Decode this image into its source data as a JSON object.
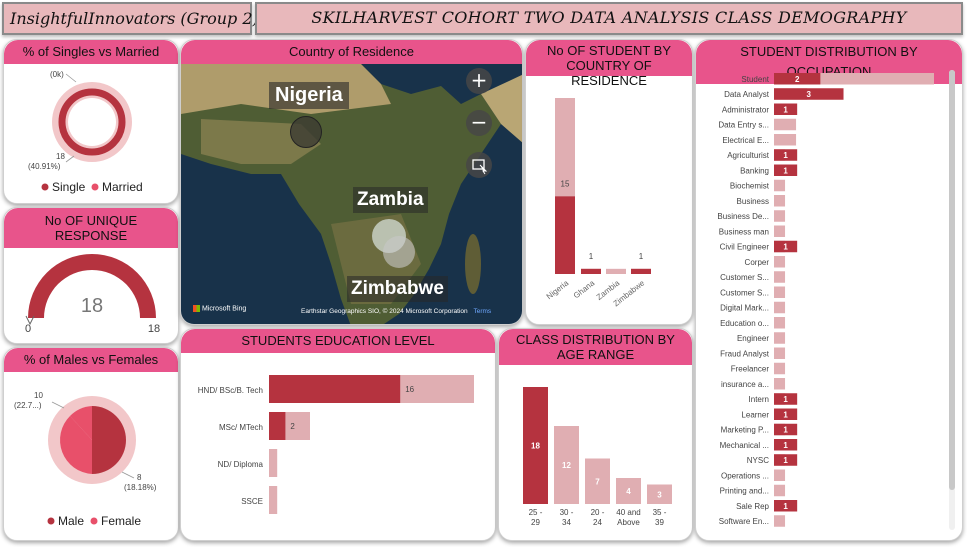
{
  "header": {
    "group_title": "InsightfulInnovators (Group 2)",
    "main_title": "SKILHARVEST COHORT TWO DATA ANALYSIS CLASS DEMOGRAPHY"
  },
  "colors": {
    "accent": "#e8548b",
    "dark_red": "#b5333f",
    "light_pink": "#e0aeb2",
    "banner": "#e8b8bb"
  },
  "marital": {
    "title": "% of Singles vs Married",
    "label_top": "(0k)",
    "label_bottom_value": "18",
    "label_bottom_pct": "(40.91%)",
    "legend": [
      "Single",
      "Married"
    ]
  },
  "unique_response": {
    "title": "No OF UNIQUE RESPONSE",
    "value": "18",
    "min": "0",
    "max": "18",
    "fraction": 1.0
  },
  "gender": {
    "title": "% of Males vs Females",
    "label_top_value": "10",
    "label_top_pct": "(22.7...)",
    "label_bottom_value": "8",
    "label_bottom_pct": "(18.18%)",
    "legend": [
      "Male",
      "Female"
    ]
  },
  "map": {
    "title": "Country of Residence",
    "labels": [
      "Nigeria",
      "Zambia",
      "Zimbabwe"
    ],
    "credit": "Earthstar Geographics SIO, © 2024 Microsoft Corporation",
    "terms": "Terms",
    "logo": "Microsoft Bing",
    "controls": [
      "zoom-in-icon",
      "zoom-out-icon",
      "select-icon"
    ]
  },
  "education": {
    "title": "STUDENTS EDUCATION LEVEL",
    "categories": [
      "HND/ BSc/B. Tech",
      "MSc/ MTech",
      "ND/ Diploma",
      "SSCE"
    ]
  },
  "country_count": {
    "title": "No OF STUDENT BY COUNTRY OF RESIDENCE",
    "categories": [
      "Nigeria",
      "Ghana",
      "Zambia",
      "Zimbabwe"
    ]
  },
  "age": {
    "title": "CLASS DISTRIBUTION BY AGE RANGE",
    "categories": [
      "25 - 29",
      "30 - 34",
      "20 - 24",
      "40 and Above",
      "35 - 39"
    ]
  },
  "occupation": {
    "title": "STUDENT DISTRIBUTION BY OCCUPATION",
    "categories": [
      "Student",
      "Data Analyst",
      "Administrator",
      "Data Entry s...",
      "Electrical E...",
      "Agriculturist",
      "Banking",
      "Biochemist",
      "Business",
      "Business De...",
      "Business man",
      "Civil Engineer",
      "Corper",
      "Customer S...",
      "Customer S...",
      "Digital Mark...",
      "Education o...",
      "Engineer",
      "Fraud Analyst",
      "Freelancer",
      "insurance a...",
      "Intern",
      "Learner",
      "Marketing P...",
      "Mechanical ...",
      "NYSC",
      "Operations ...",
      "Printing and...",
      "Sale Rep",
      "Software En..."
    ]
  },
  "chart_data": [
    {
      "type": "pie",
      "title": "% of Singles vs Married",
      "categories": [
        "Single",
        "Married"
      ],
      "values": [
        18,
        0
      ],
      "labels": [
        "18 (40.91%)",
        "(0k)"
      ]
    },
    {
      "type": "bar",
      "title": "No OF UNIQUE RESPONSE",
      "values": [
        18
      ],
      "ylim": [
        0,
        18
      ]
    },
    {
      "type": "pie",
      "title": "% of Males vs Females",
      "categories": [
        "Male",
        "Female"
      ],
      "values": [
        10,
        8
      ],
      "labels": [
        "10 (22.7...)",
        "8 (18.18%)"
      ]
    },
    {
      "type": "bar",
      "title": "STUDENTS EDUCATION LEVEL",
      "categories": [
        "HND/ BSc/B. Tech",
        "MSc/ MTech",
        "ND/ Diploma",
        "SSCE"
      ],
      "series": [
        {
          "values": [
            16,
            2,
            0,
            0
          ],
          "labels": [
            "16",
            "2",
            "",
            ""
          ]
        },
        {
          "values": [
            25,
            5,
            1,
            1
          ]
        }
      ]
    },
    {
      "type": "bar",
      "title": "No OF STUDENT BY COUNTRY OF RESIDENCE",
      "categories": [
        "Nigeria",
        "Ghana",
        "Zambia",
        "Zimbabwe"
      ],
      "series": [
        {
          "values": [
            15,
            1,
            0,
            1
          ],
          "labels": [
            "15",
            "1",
            "",
            "1"
          ]
        },
        {
          "values": [
            34,
            1,
            1,
            1
          ]
        }
      ]
    },
    {
      "type": "bar",
      "title": "CLASS DISTRIBUTION BY AGE RANGE",
      "categories": [
        "25 - 29",
        "30 - 34",
        "20 - 24",
        "40 and Above",
        "35 - 39"
      ],
      "values": [
        18,
        12,
        7,
        4,
        3
      ],
      "colors": [
        "#b5333f",
        "#e0aeb2",
        "#e0aeb2",
        "#e0aeb2",
        "#e0aeb2"
      ]
    },
    {
      "type": "bar",
      "title": "STUDENT DISTRIBUTION BY OCCUPATION",
      "categories": [
        "Student",
        "Data Analyst",
        "Administrator",
        "Data Entry s...",
        "Electrical E...",
        "Agriculturist",
        "Banking",
        "Biochemist",
        "Business",
        "Business De...",
        "Business man",
        "Civil Engineer",
        "Corper",
        "Customer S...",
        "Customer S...",
        "Digital Mark...",
        "Education o...",
        "Engineer",
        "Fraud Analyst",
        "Freelancer",
        "insurance a...",
        "Intern",
        "Learner",
        "Marketing P...",
        "Mechanical ...",
        "NYSC",
        "Operations ...",
        "Printing and...",
        "Sale Rep",
        "Software En..."
      ],
      "series": [
        {
          "values": [
            2,
            3,
            1,
            0,
            0,
            1,
            1,
            0,
            0,
            0,
            0,
            1,
            0,
            0,
            0,
            0,
            0,
            0,
            0,
            0,
            0,
            1,
            1,
            1,
            1,
            1,
            0,
            0,
            1,
            0
          ]
        },
        {
          "values": [
            14.5,
            3,
            2,
            2,
            2,
            1,
            1,
            1,
            1,
            1,
            1,
            1,
            1,
            1,
            1,
            1,
            1,
            1,
            1,
            1,
            1,
            1,
            1,
            1,
            1,
            1,
            1,
            1,
            1,
            1
          ]
        }
      ]
    }
  ]
}
